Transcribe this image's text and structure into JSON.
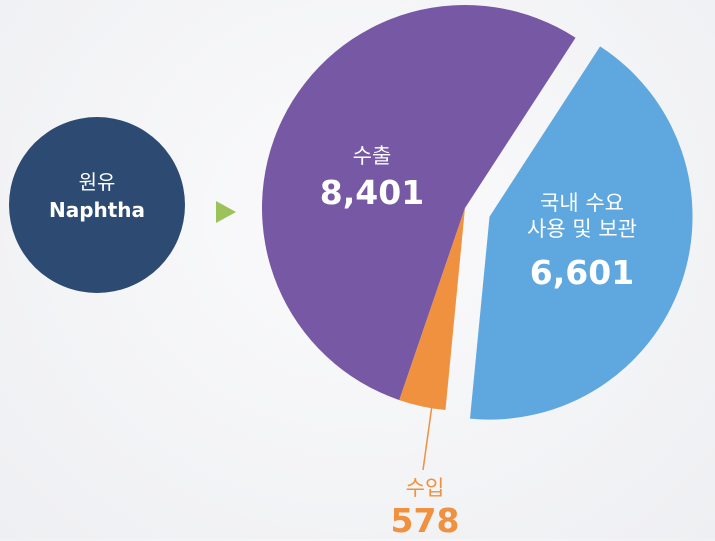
{
  "chart_data": {
    "type": "pie",
    "source": {
      "label": "원유",
      "name": "Naphtha"
    },
    "categories": [
      "수출",
      "국내 수요\n사용 및 보관",
      "수입"
    ],
    "values": [
      8401,
      6601,
      578
    ],
    "value_labels": [
      "8,401",
      "6,601",
      "578"
    ],
    "colors": [
      "#7658a5",
      "#5ea8df",
      "#f0913f"
    ],
    "exploded": [
      false,
      true,
      false
    ]
  }
}
